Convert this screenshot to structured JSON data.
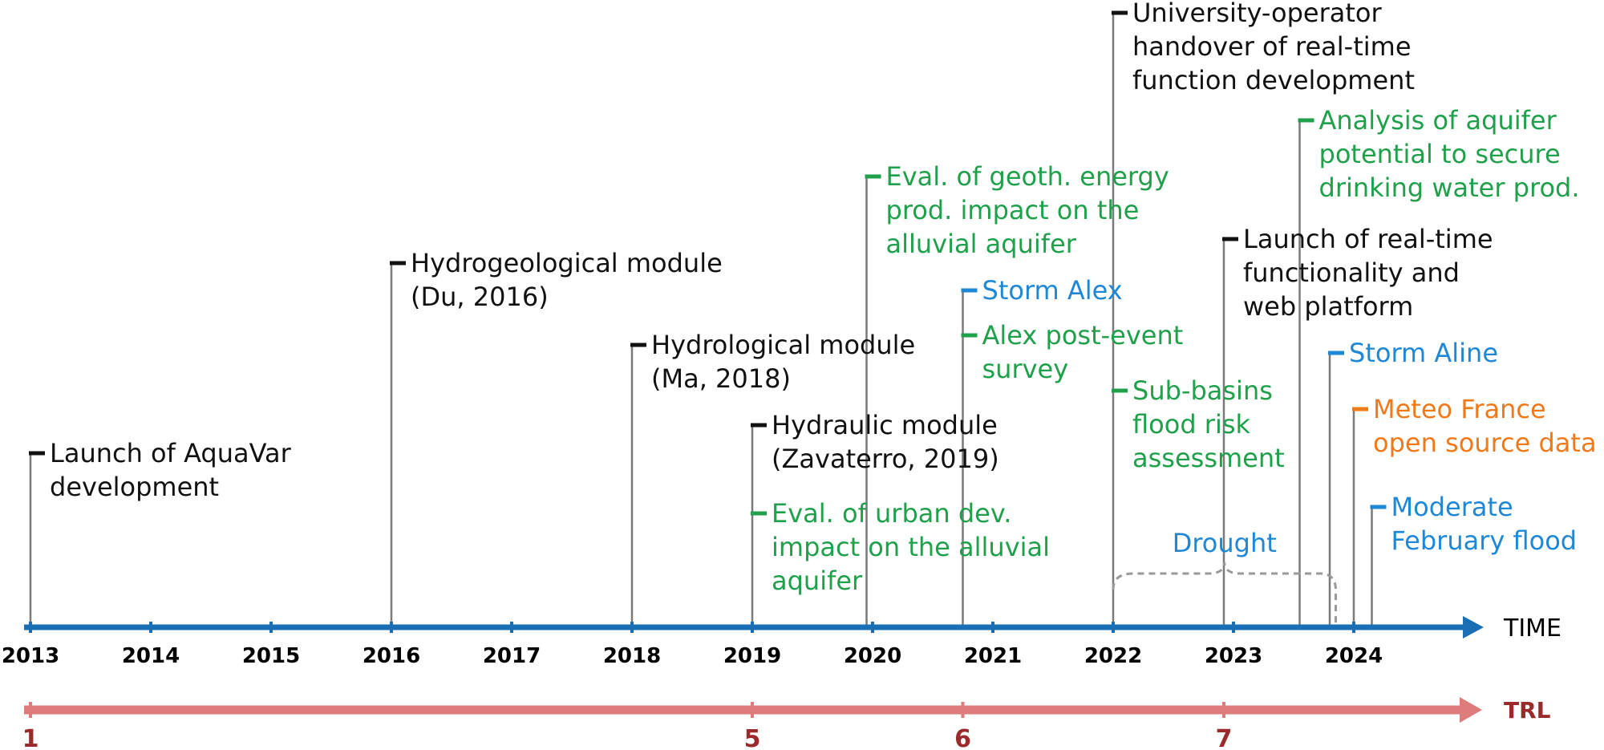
{
  "colors": {
    "black": "#111111",
    "green": "#1fa04a",
    "blue": "#1e88d6",
    "orange": "#f07a1a",
    "axis": "#1a6fb4",
    "trl": "#de7b7b",
    "trl_text": "#9b2a2a",
    "stem": "#7a7a7a"
  },
  "axis": {
    "time_label": "TIME",
    "trl_label": "TRL",
    "years": [
      "2013",
      "2014",
      "2015",
      "2016",
      "2017",
      "2018",
      "2019",
      "2020",
      "2021",
      "2022",
      "2023",
      "2024"
    ],
    "trl_levels": [
      {
        "label": "1",
        "year": 2013.0
      },
      {
        "label": "5",
        "year": 2019.0
      },
      {
        "label": "6",
        "year": 2020.75
      },
      {
        "label": "7",
        "year": 2022.92
      }
    ]
  },
  "drought": {
    "label": "Drought",
    "start": 2022.0,
    "end": 2023.85
  },
  "events": [
    {
      "id": "aquavar",
      "date": 2013.0,
      "color": "black",
      "lines": [
        "Launch of AquaVar",
        "development"
      ]
    },
    {
      "id": "hydrogeo",
      "date": 2016.0,
      "color": "black",
      "lines": [
        "Hydrogeological module",
        "(Du, 2016)"
      ]
    },
    {
      "id": "hydrological",
      "date": 2018.0,
      "color": "black",
      "lines": [
        "Hydrological module",
        "(Ma, 2018)"
      ]
    },
    {
      "id": "hydraulic",
      "date": 2019.0,
      "color": "black",
      "lines": [
        "Hydraulic module",
        "(Zavaterro, 2019)"
      ]
    },
    {
      "id": "urban",
      "date": 2019.0,
      "color": "green",
      "lines": [
        "Eval. of urban dev.",
        "impact on the alluvial",
        "aquifer"
      ]
    },
    {
      "id": "geoth",
      "date": 2019.95,
      "color": "green",
      "lines": [
        "Eval. of geoth. energy",
        "prod. impact on the",
        "alluvial aquifer"
      ]
    },
    {
      "id": "storm-alex",
      "date": 2020.75,
      "color": "blue",
      "lines": [
        "Storm Alex"
      ]
    },
    {
      "id": "alex-survey",
      "date": 2020.75,
      "color": "green",
      "lines": [
        "Alex post-event",
        "survey"
      ]
    },
    {
      "id": "handover",
      "date": 2022.0,
      "color": "black",
      "lines": [
        "University-operator",
        "handover of real-time",
        "function development"
      ]
    },
    {
      "id": "subbasins",
      "date": 2022.0,
      "color": "green",
      "lines": [
        "Sub-basins",
        "flood risk",
        "assessment"
      ]
    },
    {
      "id": "realtime",
      "date": 2022.92,
      "color": "black",
      "lines": [
        "Launch of real-time",
        "functionality and",
        "web platform"
      ]
    },
    {
      "id": "aquifer-potential",
      "date": 2023.55,
      "color": "green",
      "lines": [
        "Analysis of aquifer",
        "potential to secure",
        "drinking water prod."
      ]
    },
    {
      "id": "storm-aline",
      "date": 2023.8,
      "color": "blue",
      "lines": [
        "Storm Aline"
      ]
    },
    {
      "id": "meteo",
      "date": 2024.0,
      "color": "orange",
      "lines": [
        "Meteo France",
        "open source data"
      ]
    },
    {
      "id": "feb-flood",
      "date": 2024.15,
      "color": "blue",
      "lines": [
        "Moderate",
        "February flood"
      ]
    }
  ]
}
